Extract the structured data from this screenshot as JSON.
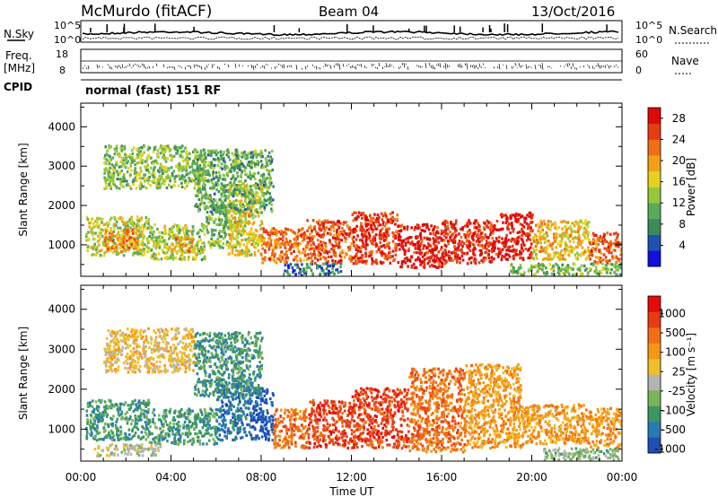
{
  "header": {
    "station": "McMurdo (fitACF)",
    "beam": "Beam 04",
    "date": "13/Oct/2016"
  },
  "noise_panel": {
    "left_label": "N.Sky",
    "right_label": "N.Search",
    "ticks_left": [
      "10^5",
      "10^0"
    ],
    "ticks_right": [
      "10^5",
      "10^0"
    ]
  },
  "freq_panel": {
    "left_label_line1": "Freq.",
    "left_label_line2": "[MHz]",
    "ticks_left": [
      "18",
      "8"
    ],
    "right_label": "Nave",
    "ticks_right": [
      "60",
      "0"
    ]
  },
  "cpid": {
    "label": "CPID",
    "value": "normal (fast) 151 RF"
  },
  "chart_data": [
    {
      "type": "heatmap",
      "name": "power",
      "ylabel": "Slant Range [km]",
      "xlabel": "",
      "x_ticks": [
        "00:00",
        "04:00",
        "08:00",
        "12:00",
        "16:00",
        "20:00",
        "00:00"
      ],
      "y_ticks": [
        1000,
        2000,
        3000,
        4000
      ],
      "ylim": [
        200,
        4600
      ],
      "colorbar": {
        "label": "Power [dB]",
        "ticks": [
          "4",
          "8",
          "12",
          "16",
          "20",
          "24",
          "28"
        ],
        "colors": [
          "#1010e0",
          "#2050b0",
          "#3c8c5a",
          "#5aaa5a",
          "#96c83c",
          "#e6d21e",
          "#f5a014",
          "#f06e14",
          "#e63c14",
          "#dc0a0a"
        ]
      },
      "regions": [
        {
          "t0": 0.2,
          "t1": 3.0,
          "r0": 700,
          "r1": 1700,
          "level": 13
        },
        {
          "t0": 1.0,
          "t1": 2.5,
          "r0": 800,
          "r1": 1400,
          "level": 19
        },
        {
          "t0": 3.0,
          "t1": 5.5,
          "r0": 600,
          "r1": 1500,
          "level": 12
        },
        {
          "t0": 4.0,
          "t1": 5.0,
          "r0": 800,
          "r1": 1200,
          "level": 18
        },
        {
          "t0": 5.5,
          "t1": 7.0,
          "r0": 900,
          "r1": 2000,
          "level": 10
        },
        {
          "t0": 6.5,
          "t1": 8.0,
          "r0": 700,
          "r1": 2500,
          "level": 15
        },
        {
          "t0": 8.0,
          "t1": 10.0,
          "r0": 500,
          "r1": 1400,
          "level": 21
        },
        {
          "t0": 10.0,
          "t1": 12.0,
          "r0": 500,
          "r1": 1600,
          "level": 23
        },
        {
          "t0": 12.0,
          "t1": 14.0,
          "r0": 500,
          "r1": 1800,
          "level": 25
        },
        {
          "t0": 14.0,
          "t1": 16.0,
          "r0": 400,
          "r1": 1500,
          "level": 27
        },
        {
          "t0": 16.0,
          "t1": 18.5,
          "r0": 500,
          "r1": 1600,
          "level": 26
        },
        {
          "t0": 18.5,
          "t1": 20.0,
          "r0": 600,
          "r1": 1800,
          "level": 27
        },
        {
          "t0": 20.0,
          "t1": 22.5,
          "r0": 600,
          "r1": 1600,
          "level": 16
        },
        {
          "t0": 22.5,
          "t1": 24.0,
          "r0": 500,
          "r1": 1300,
          "level": 22
        },
        {
          "t0": 1.0,
          "t1": 5.5,
          "r0": 2400,
          "r1": 3500,
          "level": 11
        },
        {
          "t0": 5.0,
          "t1": 8.5,
          "r0": 1800,
          "r1": 3400,
          "level": 9
        },
        {
          "t0": 9.0,
          "t1": 11.5,
          "r0": 200,
          "r1": 500,
          "level": 5
        },
        {
          "t0": 19.0,
          "t1": 24.0,
          "r0": 200,
          "r1": 500,
          "level": 10
        }
      ]
    },
    {
      "type": "heatmap",
      "name": "velocity",
      "ylabel": "Slant Range [km]",
      "xlabel": "Time UT",
      "x_ticks": [
        "00:00",
        "04:00",
        "08:00",
        "12:00",
        "16:00",
        "20:00",
        "00:00"
      ],
      "y_ticks": [
        1000,
        2000,
        3000,
        4000
      ],
      "ylim": [
        200,
        4600
      ],
      "colorbar": {
        "label": "Velocity [m s⁻¹]",
        "ticks": [
          "1000",
          "500",
          "100",
          "25",
          "-25",
          "-100",
          "-500",
          "-1000"
        ],
        "colors": [
          "#1e50b4",
          "#287ab4",
          "#3c9664",
          "#78b45a",
          "#b4b4b4",
          "#f0be28",
          "#f59614",
          "#f06e14",
          "#e63c14",
          "#e60a0a"
        ]
      },
      "regions": [
        {
          "t0": 0.2,
          "t1": 3.0,
          "r0": 700,
          "r1": 1700,
          "level": 2
        },
        {
          "t0": 3.0,
          "t1": 6.0,
          "r0": 600,
          "r1": 1500,
          "level": 2
        },
        {
          "t0": 6.0,
          "t1": 7.5,
          "r0": 700,
          "r1": 2200,
          "level": 1
        },
        {
          "t0": 7.5,
          "t1": 8.5,
          "r0": 700,
          "r1": 2000,
          "level": 0
        },
        {
          "t0": 8.5,
          "t1": 10.0,
          "r0": 500,
          "r1": 1500,
          "level": 7
        },
        {
          "t0": 10.0,
          "t1": 12.0,
          "r0": 500,
          "r1": 1700,
          "level": 8
        },
        {
          "t0": 12.0,
          "t1": 14.5,
          "r0": 500,
          "r1": 2000,
          "level": 8
        },
        {
          "t0": 14.5,
          "t1": 17.0,
          "r0": 400,
          "r1": 2500,
          "level": 7
        },
        {
          "t0": 17.0,
          "t1": 19.5,
          "r0": 500,
          "r1": 2600,
          "level": 6
        },
        {
          "t0": 19.5,
          "t1": 22.5,
          "r0": 600,
          "r1": 1600,
          "level": 6
        },
        {
          "t0": 22.5,
          "t1": 24.0,
          "r0": 500,
          "r1": 1500,
          "level": 6
        },
        {
          "t0": 1.0,
          "t1": 5.0,
          "r0": 2400,
          "r1": 3500,
          "level": 5
        },
        {
          "t0": 5.0,
          "t1": 8.0,
          "r0": 1800,
          "r1": 3400,
          "level": 2
        },
        {
          "t0": 20.5,
          "t1": 24.0,
          "r0": 200,
          "r1": 500,
          "level": 3
        },
        {
          "t0": 0.5,
          "t1": 3.5,
          "r0": 300,
          "r1": 600,
          "level": 4
        }
      ]
    }
  ]
}
